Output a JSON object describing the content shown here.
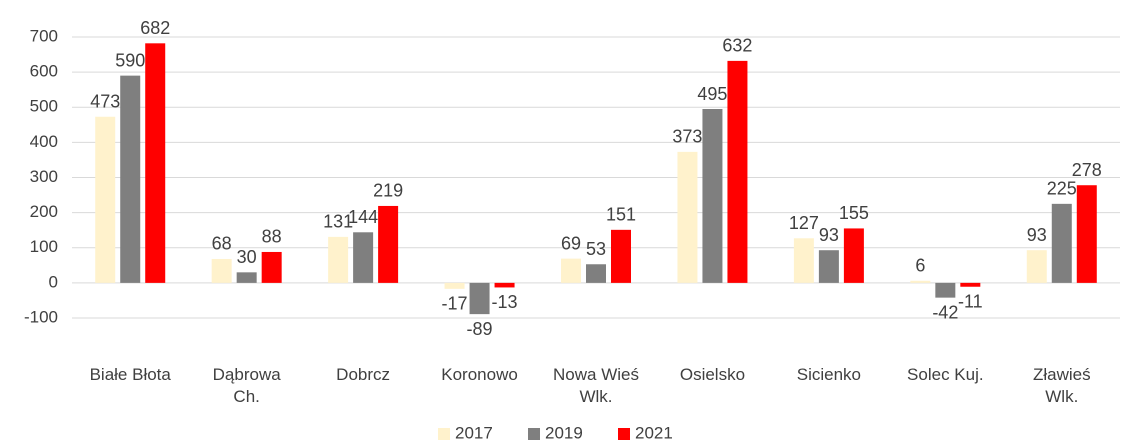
{
  "chart_data": {
    "type": "bar",
    "categories": [
      [
        "Białe Błota"
      ],
      [
        "Dąbrowa",
        "Ch."
      ],
      [
        "Dobrcz"
      ],
      [
        "Koronowo"
      ],
      [
        "Nowa Wieś",
        "Wlk."
      ],
      [
        "Osielsko"
      ],
      [
        "Sicienko"
      ],
      [
        "Solec Kuj."
      ],
      [
        "Zławieś",
        "Wlk."
      ]
    ],
    "series": [
      {
        "name": "2017",
        "color": "#fff2cc",
        "values": [
          473,
          68,
          131,
          -17,
          69,
          373,
          127,
          6,
          93
        ]
      },
      {
        "name": "2019",
        "color": "#7f7f7f",
        "values": [
          590,
          30,
          144,
          -89,
          53,
          495,
          93,
          -42,
          225
        ]
      },
      {
        "name": "2021",
        "color": "#ff0000",
        "values": [
          682,
          88,
          219,
          -13,
          151,
          632,
          155,
          -11,
          278
        ]
      }
    ],
    "ylim": [
      -100,
      700
    ],
    "yticks": [
      -100,
      0,
      100,
      200,
      300,
      400,
      500,
      600,
      700
    ],
    "grid": true,
    "legend": "bottom"
  }
}
